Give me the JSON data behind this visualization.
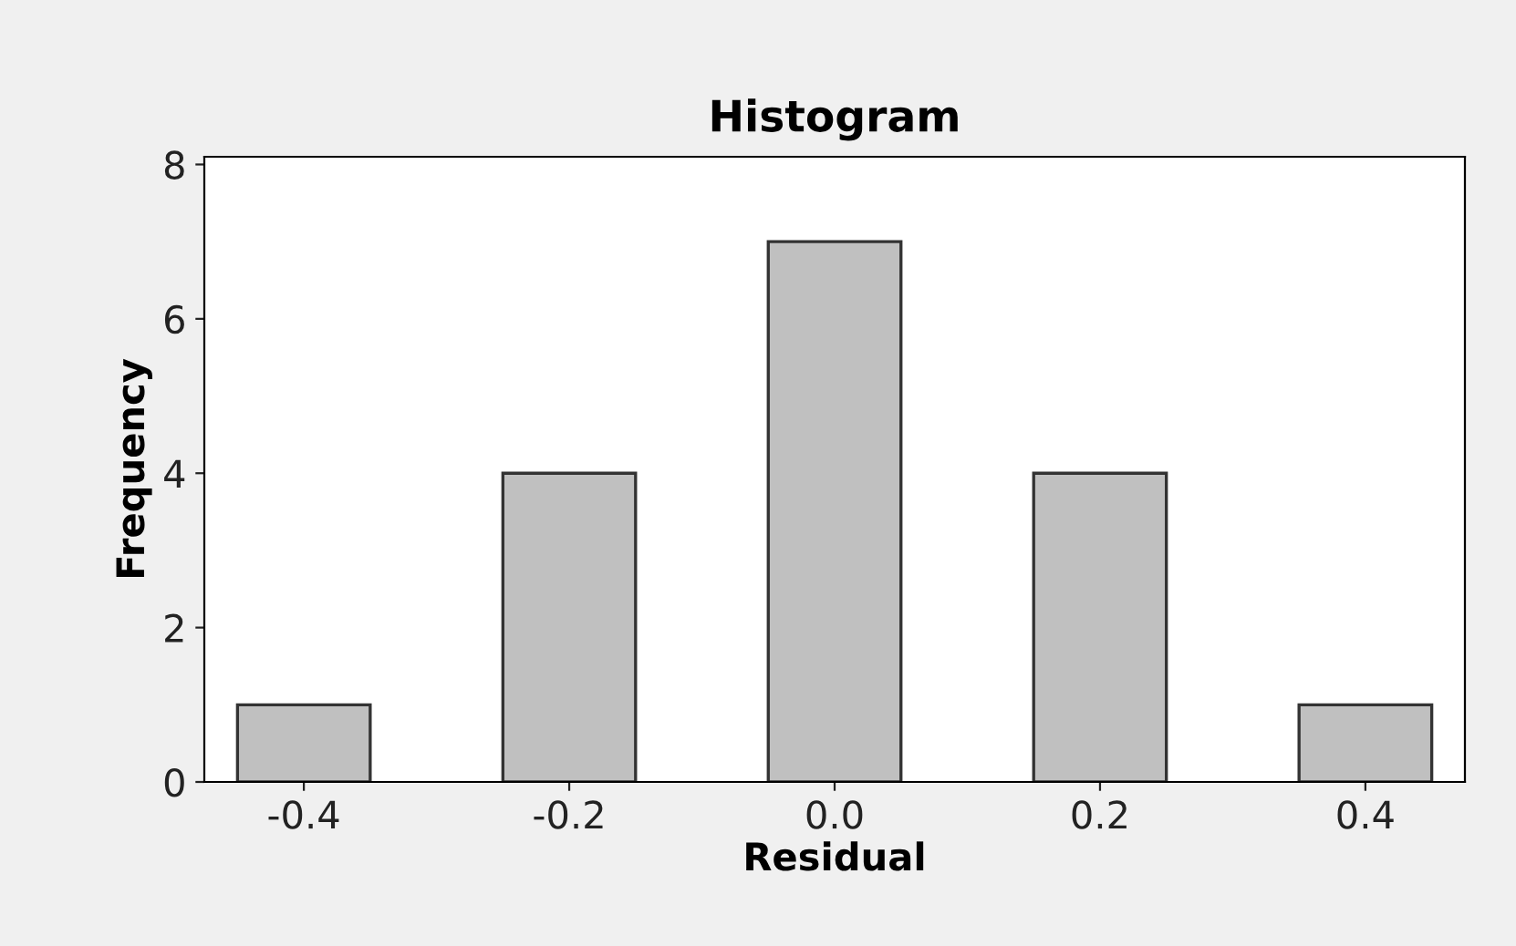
{
  "chart_data": {
    "type": "bar",
    "title": "Histogram",
    "xlabel": "Residual",
    "ylabel": "Frequency",
    "x": [
      -0.4,
      -0.2,
      0.0,
      0.2,
      0.4
    ],
    "values": [
      1,
      4,
      7,
      4,
      1
    ],
    "color": "#c0c0c0",
    "xlim": [
      -0.475,
      0.475
    ],
    "xticks": [
      {
        "value": -0.4,
        "label": "-0.4"
      },
      {
        "value": -0.2,
        "label": "-0.2"
      },
      {
        "value": 0.0,
        "label": "0.0"
      },
      {
        "value": 0.2,
        "label": "0.2"
      },
      {
        "value": 0.4,
        "label": "0.4"
      }
    ],
    "ylim": [
      0,
      8.1
    ],
    "yticks": [
      0,
      2,
      4,
      6,
      8
    ],
    "grid": false,
    "legend": false
  }
}
